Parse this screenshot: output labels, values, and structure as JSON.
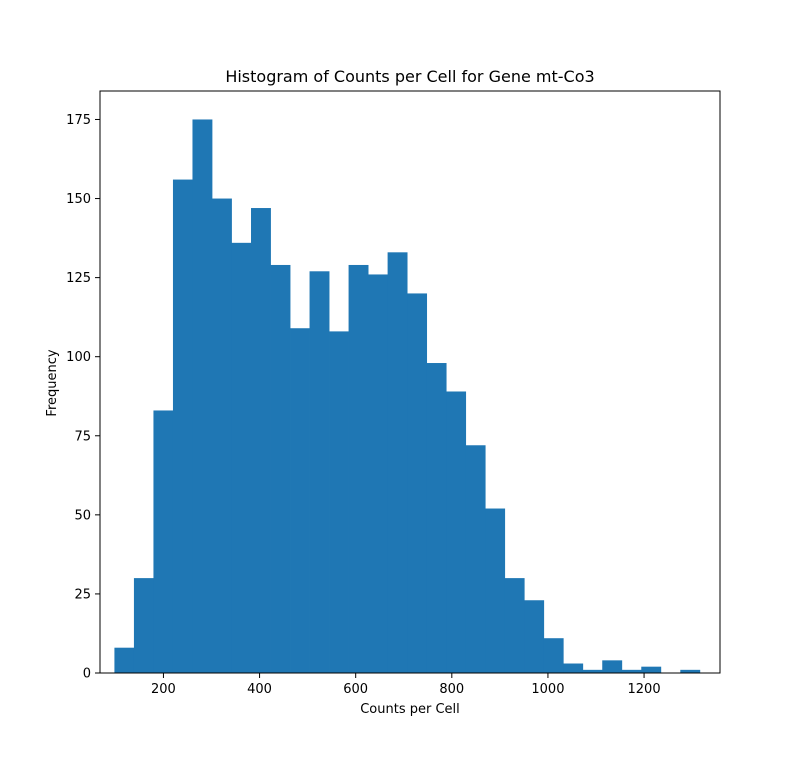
{
  "chart_data": {
    "type": "bar",
    "title": "Histogram of Counts per Cell for Gene mt-Co3",
    "xlabel": "Counts per Cell",
    "ylabel": "Frequency",
    "xlim": [
      68,
      1358
    ],
    "ylim": [
      0,
      184
    ],
    "x_ticks": [
      200,
      400,
      600,
      800,
      1000,
      1200
    ],
    "x_tick_labels": [
      "200",
      "400",
      "600",
      "800",
      "1000",
      "1200"
    ],
    "y_ticks": [
      0,
      25,
      50,
      75,
      100,
      125,
      150,
      175
    ],
    "y_tick_labels": [
      "0",
      "25",
      "50",
      "75",
      "100",
      "125",
      "150",
      "175"
    ],
    "bin_edges": [
      98.0,
      138.6,
      179.2,
      219.8,
      260.4,
      301.0,
      341.6,
      382.2,
      422.8,
      463.4,
      504.0,
      544.6,
      585.2,
      625.8,
      666.4,
      707.0,
      747.6,
      788.2,
      828.8,
      869.4,
      910.0,
      950.6,
      991.2,
      1031.8,
      1072.4,
      1113.0,
      1153.6,
      1194.2,
      1234.8,
      1275.4,
      1316.0
    ],
    "values": [
      8,
      30,
      83,
      156,
      175,
      150,
      136,
      147,
      129,
      109,
      127,
      108,
      129,
      126,
      133,
      120,
      98,
      89,
      72,
      52,
      30,
      23,
      11,
      3,
      1,
      4,
      1,
      2,
      0,
      1
    ],
    "grid": false,
    "legend": "none",
    "bar_color": "#1f77b4"
  }
}
